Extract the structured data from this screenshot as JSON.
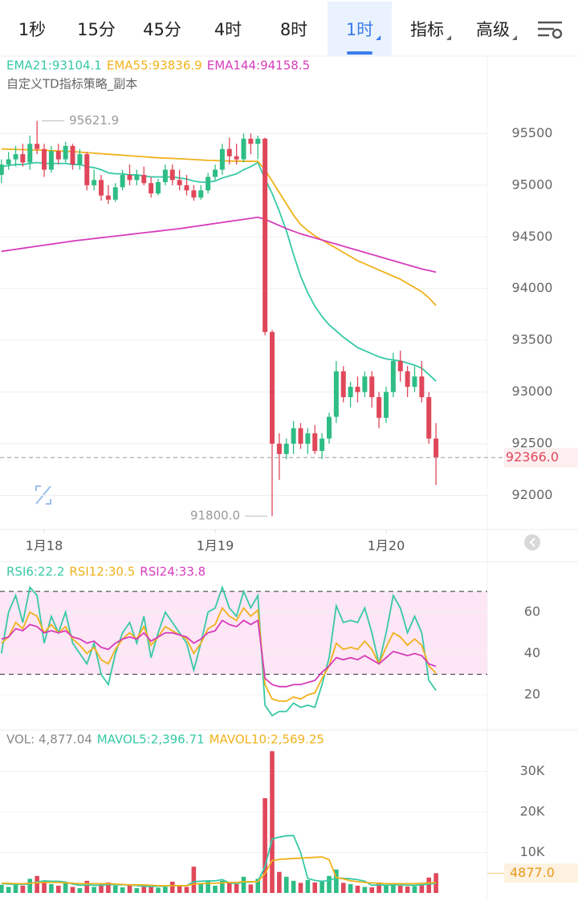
{
  "tabs": [
    "1秒",
    "15分",
    "45分",
    "4时",
    "8时",
    "1时",
    "指标",
    "高级"
  ],
  "active_tab": "1时",
  "chart_data": [
    {
      "type": "candlestick",
      "subtitle": "自定义TD指标策略_副本",
      "x": [
        0,
        1,
        2,
        3,
        4,
        5,
        6,
        7,
        8,
        9,
        10,
        11,
        12,
        13,
        14,
        15,
        16,
        17,
        18,
        19,
        20,
        21,
        22,
        23,
        24,
        25,
        26,
        27,
        28,
        29,
        30,
        31,
        32,
        33,
        34,
        35,
        36,
        37,
        38,
        39,
        40,
        41,
        42,
        43,
        44,
        45,
        46,
        47,
        48,
        49,
        50,
        51,
        52,
        53,
        54,
        55,
        56,
        57,
        58,
        59,
        60,
        61
      ],
      "xlim": [
        -0.2,
        68.2
      ],
      "xticks": [
        {
          "value": 6,
          "label": "1月18"
        },
        {
          "value": 30,
          "label": "1月19"
        },
        {
          "value": 54,
          "label": "1月20"
        }
      ],
      "ylim": [
        91670,
        95860
      ],
      "yticks": [
        92000,
        92500,
        93000,
        93500,
        94000,
        94500,
        95000,
        95500
      ],
      "grid": true,
      "up_color": "#2ebd85",
      "down_color": "#e0475a",
      "open": [
        95100,
        95200,
        95250,
        95300,
        95220,
        95400,
        95350,
        95150,
        95330,
        95250,
        95380,
        95200,
        95300,
        95000,
        95050,
        94900,
        94860,
        94980,
        95100,
        95050,
        95100,
        95020,
        94920,
        95030,
        95150,
        95050,
        95000,
        94950,
        94880,
        94950,
        95080,
        95150,
        95350,
        95280,
        95250,
        95450,
        95400,
        95450,
        93580,
        92500,
        92400,
        92500,
        92650,
        92500,
        92600,
        92430,
        92550,
        92760,
        93200,
        92950,
        93050,
        93000,
        93150,
        92950,
        92750,
        93000,
        93300,
        93200,
        93050,
        93150,
        92950,
        92550
      ],
      "high": [
        95250,
        95320,
        95380,
        95400,
        95480,
        95621.9,
        95400,
        95380,
        95400,
        95420,
        95400,
        95350,
        95320,
        95150,
        95100,
        95000,
        95020,
        95150,
        95200,
        95150,
        95180,
        95080,
        95060,
        95200,
        95200,
        95150,
        95100,
        95000,
        95000,
        95120,
        95200,
        95400,
        95460,
        95400,
        95500,
        95500,
        95480,
        95460,
        93600,
        92600,
        92550,
        92720,
        92700,
        92650,
        92680,
        92600,
        92800,
        93300,
        93250,
        93100,
        93150,
        93200,
        93200,
        93000,
        93050,
        93380,
        93400,
        93250,
        93250,
        93300,
        93000,
        92700
      ],
      "low": [
        95020,
        95150,
        95180,
        95180,
        95150,
        95300,
        95080,
        95120,
        95200,
        95220,
        95150,
        95150,
        94950,
        94950,
        94850,
        94820,
        94840,
        94950,
        95000,
        95000,
        95000,
        94880,
        94900,
        95000,
        95000,
        94950,
        94900,
        94850,
        94860,
        94920,
        95050,
        95100,
        95200,
        95200,
        95220,
        95300,
        95250,
        93550,
        91800,
        92150,
        92350,
        92400,
        92450,
        92400,
        92400,
        92350,
        92500,
        92700,
        92900,
        92850,
        92900,
        92950,
        92850,
        92650,
        92700,
        92950,
        93100,
        92950,
        93000,
        92900,
        92500,
        92100
      ],
      "close": [
        95200,
        95250,
        95300,
        95220,
        95400,
        95350,
        95150,
        95330,
        95250,
        95380,
        95200,
        95300,
        95000,
        95050,
        94900,
        94860,
        94980,
        95100,
        95050,
        95100,
        95020,
        94920,
        95030,
        95150,
        95050,
        95000,
        94950,
        94880,
        94950,
        95080,
        95150,
        95350,
        95280,
        95250,
        95450,
        95400,
        95450,
        93580,
        92500,
        92400,
        92500,
        92650,
        92500,
        92600,
        92430,
        92550,
        92760,
        93200,
        92950,
        93050,
        93000,
        93150,
        92950,
        92750,
        93000,
        93300,
        93200,
        93050,
        93150,
        92950,
        92550,
        92366
      ],
      "series": [
        {
          "name": "EMA21:93104.1",
          "color": "#36c9a6",
          "values": [
            95180,
            95190,
            95200,
            95200,
            95210,
            95220,
            95210,
            95210,
            95210,
            95210,
            95200,
            95200,
            95180,
            95170,
            95150,
            95120,
            95110,
            95110,
            95100,
            95100,
            95090,
            95080,
            95080,
            95080,
            95080,
            95070,
            95060,
            95040,
            95030,
            95030,
            95040,
            95070,
            95090,
            95110,
            95150,
            95180,
            95220,
            95060,
            94920,
            94750,
            94560,
            94330,
            94120,
            93960,
            93830,
            93730,
            93650,
            93590,
            93530,
            93480,
            93430,
            93400,
            93370,
            93340,
            93320,
            93310,
            93300,
            93280,
            93260,
            93230,
            93170,
            93104.1
          ]
        },
        {
          "name": "EMA55:93836.9",
          "color": "#f0b21b",
          "values": [
            95350,
            95348,
            95346,
            95344,
            95342,
            95340,
            95337,
            95334,
            95331,
            95328,
            95325,
            95320,
            95315,
            95310,
            95305,
            95300,
            95295,
            95290,
            95285,
            95280,
            95275,
            95270,
            95265,
            95262,
            95259,
            95256,
            95252,
            95248,
            95244,
            95240,
            95238,
            95236,
            95234,
            95233,
            95232,
            95231,
            95230,
            95150,
            95040,
            94930,
            94820,
            94710,
            94620,
            94560,
            94510,
            94470,
            94430,
            94390,
            94350,
            94310,
            94270,
            94240,
            94210,
            94180,
            94150,
            94120,
            94090,
            94050,
            94010,
            93970,
            93910,
            93836.9
          ]
        },
        {
          "name": "EMA144:94158.5",
          "color": "#d73cba",
          "values": [
            94360,
            94370,
            94380,
            94390,
            94400,
            94410,
            94420,
            94430,
            94440,
            94450,
            94460,
            94468,
            94476,
            94484,
            94492,
            94500,
            94508,
            94516,
            94524,
            94532,
            94540,
            94548,
            94556,
            94564,
            94572,
            94580,
            94590,
            94600,
            94610,
            94620,
            94630,
            94640,
            94650,
            94660,
            94670,
            94680,
            94690,
            94670,
            94640,
            94610,
            94580,
            94555,
            94530,
            94510,
            94490,
            94470,
            94450,
            94430,
            94410,
            94390,
            94370,
            94350,
            94330,
            94310,
            94290,
            94270,
            94250,
            94230,
            94210,
            94190,
            94175,
            94158.5
          ]
        }
      ],
      "annotations": [
        95621.9,
        {
          "value": 91800,
          "label": "91800.0"
        }
      ],
      "last_price": {
        "value": 92366,
        "label": "92366.0"
      }
    },
    {
      "type": "line",
      "ylim": [
        3,
        84.4
      ],
      "yticks": [
        20,
        40,
        60
      ],
      "grid": true,
      "reference_lines": [
        30,
        70
      ],
      "band_color": "#fde6f5",
      "series": [
        {
          "name": "RSI6:22.2",
          "color": "#36c9a6",
          "values": [
            40,
            60,
            68,
            55,
            72,
            68,
            45,
            58,
            50,
            60,
            45,
            40,
            35,
            45,
            30,
            25,
            40,
            50,
            55,
            45,
            58,
            38,
            50,
            60,
            55,
            50,
            45,
            32,
            45,
            60,
            62,
            72,
            62,
            58,
            70,
            62,
            68,
            15,
            10,
            12,
            12,
            16,
            14,
            15,
            14,
            25,
            38,
            63,
            55,
            56,
            55,
            62,
            50,
            35,
            50,
            68,
            62,
            50,
            58,
            50,
            27,
            22.2
          ]
        },
        {
          "name": "RSI12:30.5",
          "color": "#f0b21b",
          "values": [
            45,
            48,
            55,
            52,
            60,
            58,
            50,
            54,
            50,
            53,
            47,
            44,
            40,
            43,
            37,
            35,
            42,
            47,
            50,
            47,
            53,
            44,
            48,
            53,
            51,
            49,
            47,
            40,
            45,
            52,
            54,
            62,
            58,
            56,
            62,
            58,
            61,
            25,
            18,
            17,
            17,
            19,
            18,
            20,
            21,
            28,
            34,
            45,
            42,
            43,
            42,
            46,
            42,
            35,
            43,
            50,
            48,
            44,
            47,
            44,
            34,
            30.5
          ]
        },
        {
          "name": "RSI24:33.8",
          "color": "#d73cba",
          "values": [
            47,
            48,
            52,
            51,
            54,
            53,
            50,
            51,
            50,
            51,
            48,
            47,
            45,
            46,
            43,
            42,
            45,
            47,
            48,
            47,
            50,
            46,
            48,
            50,
            50,
            49,
            48,
            45,
            47,
            50,
            51,
            56,
            54,
            53,
            56,
            54,
            56,
            28,
            25,
            24,
            24,
            25,
            25,
            26,
            27,
            31,
            34,
            38,
            37,
            38,
            37,
            39,
            37,
            35,
            38,
            41,
            40,
            39,
            40,
            39,
            35,
            33.8
          ]
        }
      ]
    },
    {
      "type": "bar",
      "name": "VOL: 4,877.04",
      "ylim": [
        0,
        40200
      ],
      "yticks": [
        {
          "value": 10000,
          "label": "10K"
        },
        {
          "value": 20000,
          "label": "20K"
        },
        {
          "value": 30000,
          "label": "30K"
        }
      ],
      "grid": true,
      "values": [
        2000,
        1500,
        2500,
        1800,
        3500,
        4200,
        3000,
        2200,
        1800,
        2500,
        1500,
        1200,
        3000,
        1500,
        2200,
        2600,
        1800,
        1400,
        2000,
        1200,
        1600,
        1900,
        1300,
        1500,
        2800,
        1800,
        1500,
        6500,
        2200,
        3000,
        1800,
        3000,
        2600,
        2200,
        4000,
        2100,
        3500,
        23400,
        35000,
        5200,
        4000,
        3000,
        2500,
        3200,
        2600,
        2800,
        4200,
        5800,
        2500,
        2200,
        1800,
        1500,
        1400,
        2600,
        2000,
        2400,
        1800,
        1600,
        1700,
        2200,
        3800,
        4877.04
      ],
      "series": [
        {
          "name": "MAVOL5:2,396.71",
          "color": "#36c9a6",
          "values": [
            2300,
            2200,
            2100,
            2100,
            2300,
            2700,
            3000,
            2900,
            2900,
            2700,
            2200,
            1900,
            2000,
            1900,
            1900,
            2100,
            2000,
            2000,
            2000,
            1800,
            1700,
            1600,
            1700,
            1700,
            1800,
            1800,
            1800,
            2800,
            2900,
            3000,
            3000,
            3300,
            2500,
            2300,
            2700,
            2700,
            2900,
            6500,
            13300,
            13800,
            14100,
            14200,
            10000,
            3600,
            3100,
            2900,
            3100,
            3700,
            3600,
            3500,
            3300,
            2900,
            1900,
            2000,
            1900,
            2000,
            2000,
            1900,
            1900,
            2000,
            2200,
            2396.71
          ]
        },
        {
          "name": "MAVOL10:2,569.25",
          "color": "#f0b21b",
          "values": [
            2400,
            2400,
            2300,
            2300,
            2400,
            2500,
            2600,
            2600,
            2600,
            2500,
            2400,
            2300,
            2300,
            2300,
            2300,
            2300,
            2200,
            2100,
            2000,
            2000,
            2000,
            1900,
            1800,
            1800,
            1800,
            1800,
            1800,
            2200,
            2300,
            2400,
            2400,
            2500,
            2600,
            2600,
            2800,
            2800,
            2800,
            4800,
            8000,
            8300,
            8400,
            8500,
            8600,
            8700,
            8800,
            8900,
            8200,
            3800,
            3500,
            3000,
            2800,
            2600,
            2500,
            2400,
            2300,
            2300,
            2300,
            2300,
            2300,
            2400,
            2500,
            2569.25
          ]
        }
      ],
      "last_value": {
        "value": 4877,
        "label": "4877.0"
      }
    }
  ]
}
